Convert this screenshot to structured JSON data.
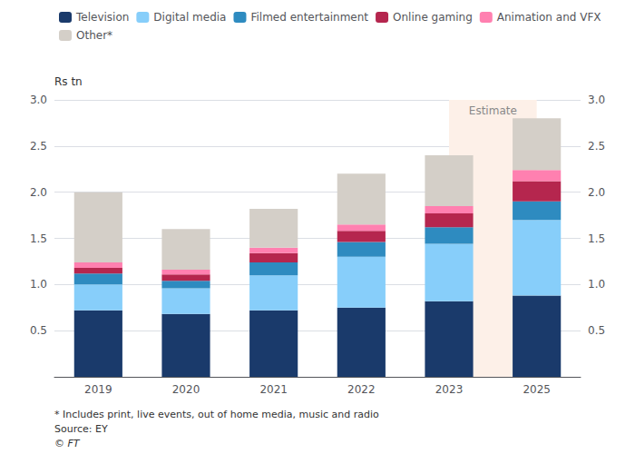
{
  "chart_data": {
    "type": "bar",
    "stacked": true,
    "ylabel": "Rs tn",
    "categories": [
      "2019",
      "2020",
      "2021",
      "2022",
      "2023",
      "2025"
    ],
    "series": [
      {
        "name": "Television",
        "color": "#1a3a6b",
        "values": [
          0.72,
          0.68,
          0.72,
          0.75,
          0.82,
          0.88
        ]
      },
      {
        "name": "Digital media",
        "color": "#87cefa",
        "values": [
          0.28,
          0.28,
          0.38,
          0.55,
          0.62,
          0.82
        ]
      },
      {
        "name": "Filmed entertainment",
        "color": "#2e8bc0",
        "values": [
          0.12,
          0.08,
          0.14,
          0.16,
          0.18,
          0.2
        ]
      },
      {
        "name": "Online gaming",
        "color": "#b5264e",
        "values": [
          0.06,
          0.07,
          0.1,
          0.12,
          0.15,
          0.22
        ]
      },
      {
        "name": "Animation and VFX",
        "color": "#ff80b0",
        "values": [
          0.06,
          0.05,
          0.06,
          0.07,
          0.08,
          0.12
        ]
      },
      {
        "name": "Other*",
        "color": "#d4cfc8",
        "values": [
          0.76,
          0.44,
          0.42,
          0.55,
          0.55,
          0.56
        ]
      }
    ],
    "ylim": [
      0,
      3.0
    ],
    "yticks": [
      0.5,
      {
        "value": 1.0,
        "label": "1.0"
      },
      1.5,
      {
        "value": 2.0,
        "label": "2.0"
      },
      2.5,
      {
        "value": 3.0,
        "label": "3.0"
      }
    ],
    "y2lim": [
      0,
      3.0
    ],
    "y2ticks": [
      0.5,
      {
        "value": 1.0,
        "label": "1.0"
      },
      1.5,
      {
        "value": 2.0,
        "label": "2.0"
      },
      2.5,
      {
        "value": 3.0,
        "label": "3.0"
      }
    ],
    "grid": true,
    "legend": "top-left",
    "annotations": [
      {
        "text": "Estimate",
        "from": "2023",
        "to": "2025",
        "color": "#fdf0e8"
      }
    ],
    "footnotes": [
      "* Includes print, live events, out of home media, music and radio",
      "Source: EY",
      "© FT"
    ]
  }
}
